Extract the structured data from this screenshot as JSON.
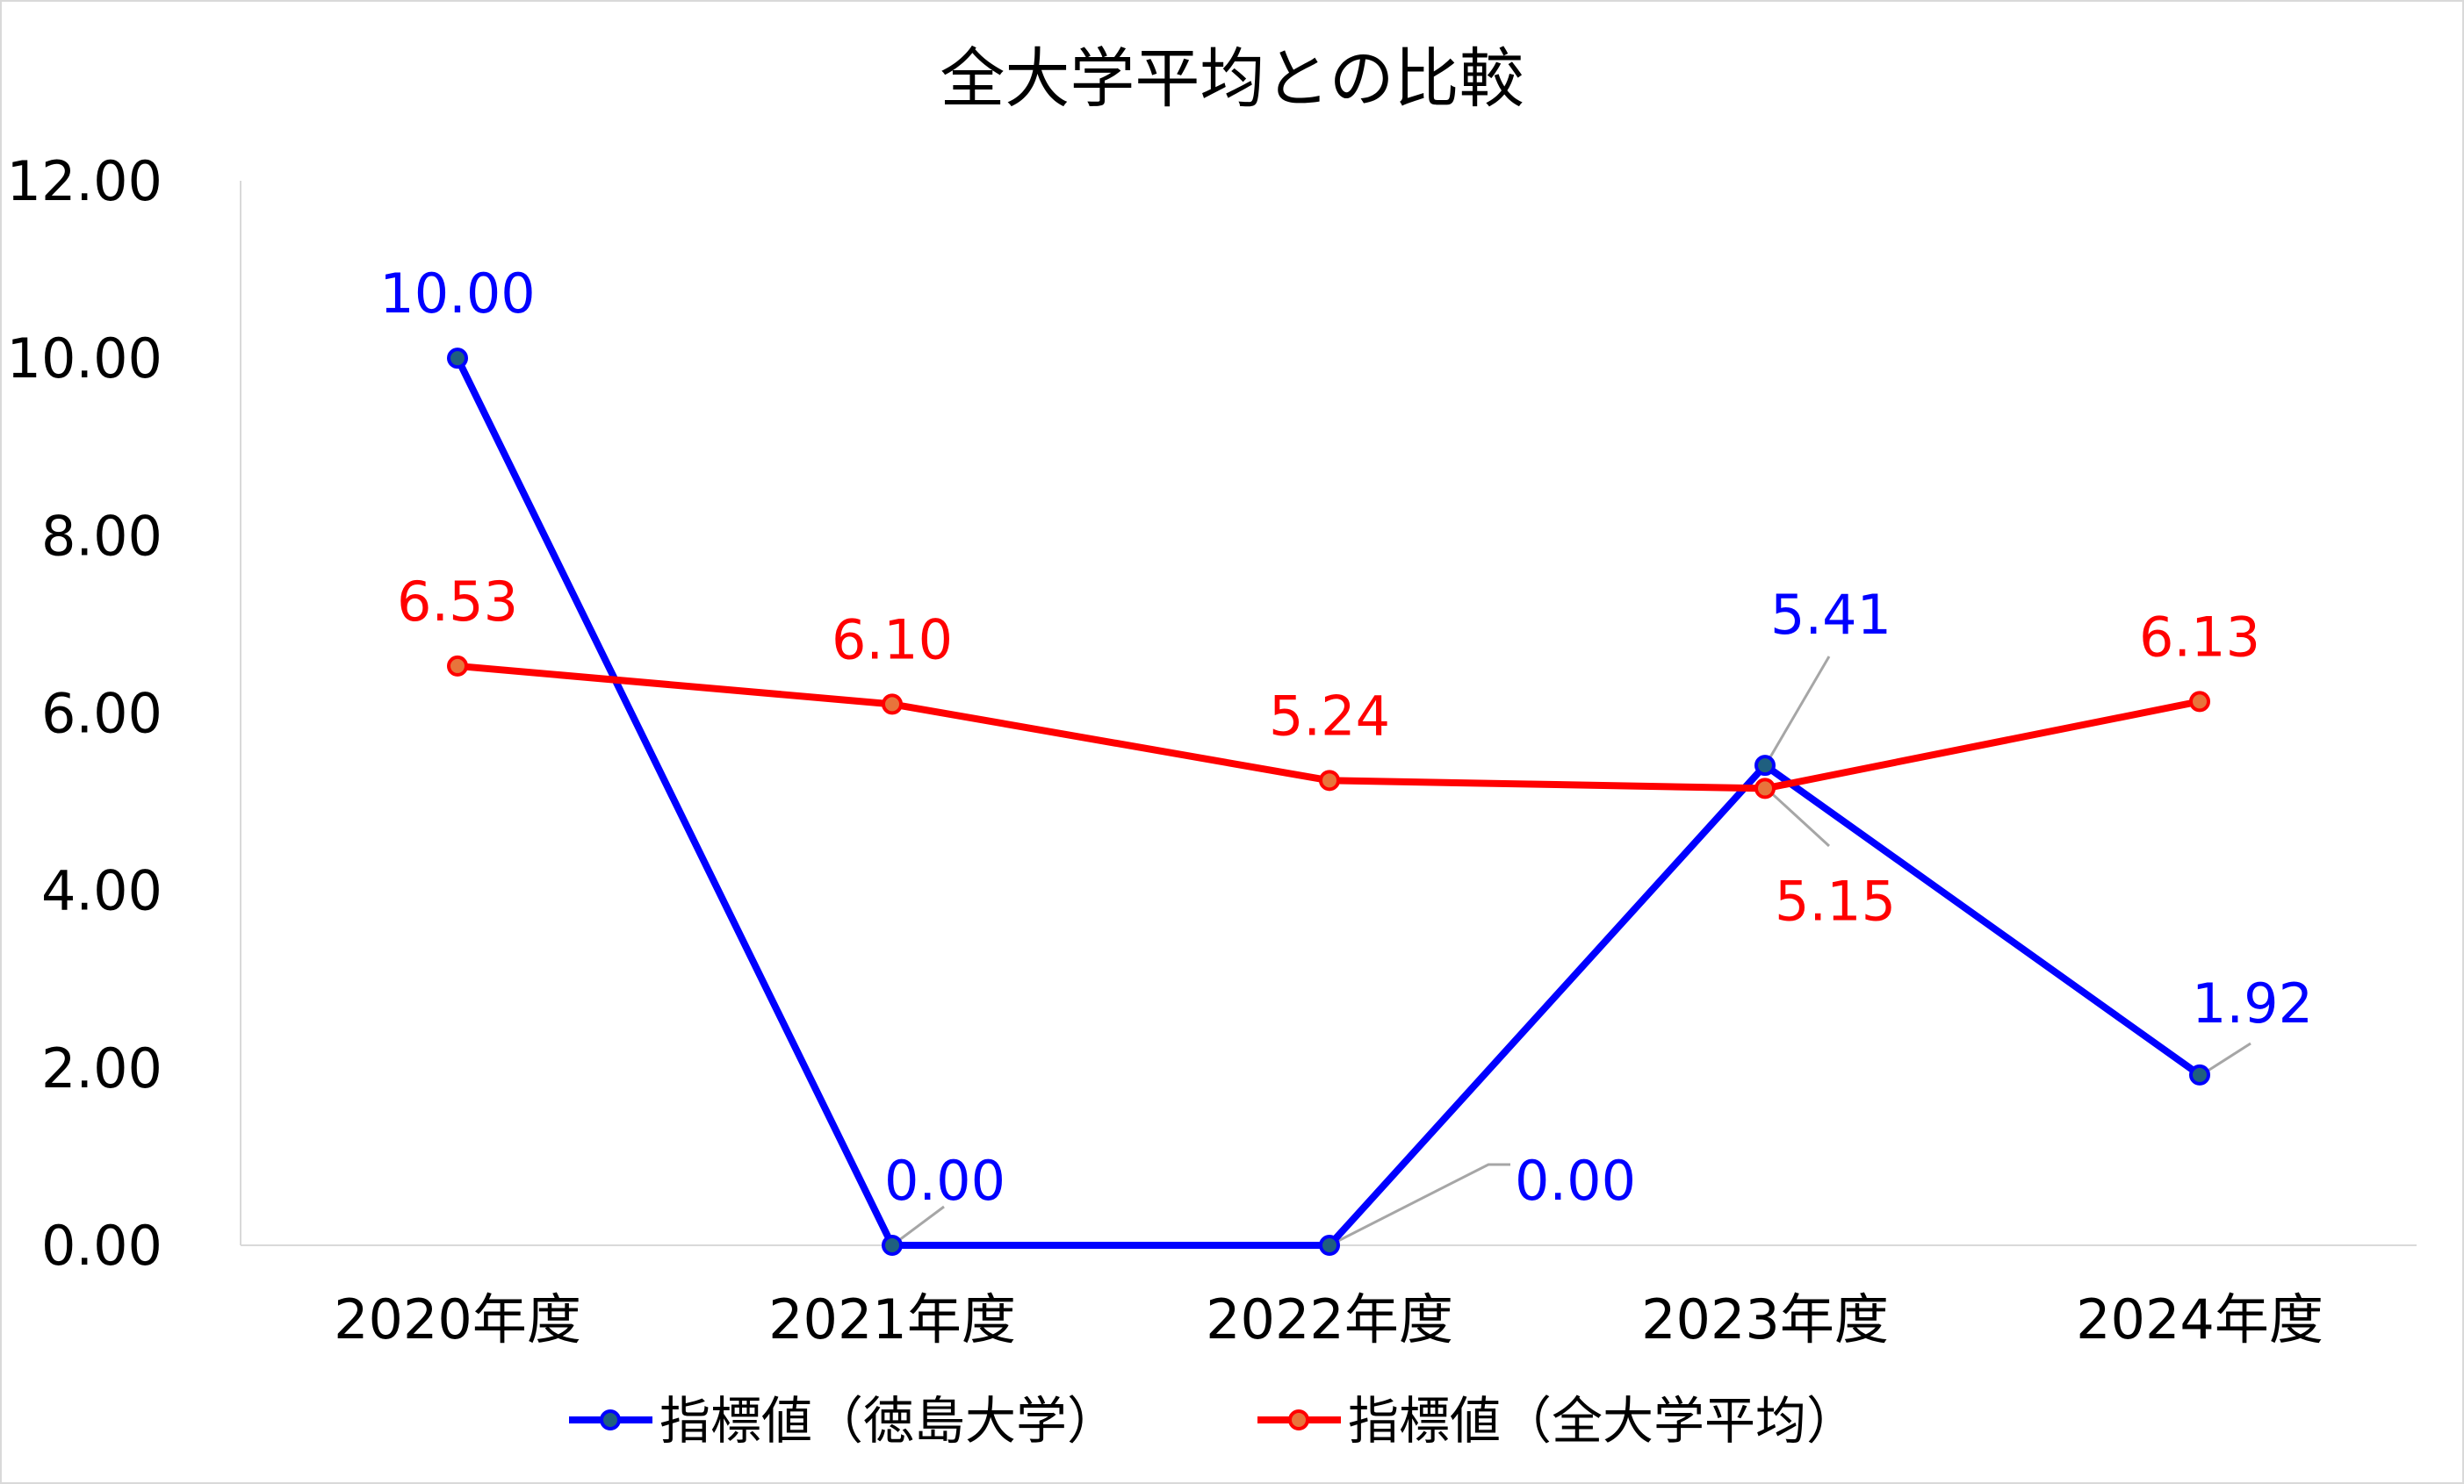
{
  "chart_data": {
    "type": "line",
    "title": "全大学平均との比較",
    "categories": [
      "2020年度",
      "2021年度",
      "2022年度",
      "2023年度",
      "2024年度"
    ],
    "ylim": [
      0,
      12
    ],
    "yticks": [
      "0.00",
      "2.00",
      "4.00",
      "6.00",
      "8.00",
      "10.00",
      "12.00"
    ],
    "grid": false,
    "legend": "bottom",
    "series": [
      {
        "name": "指標値（徳島大学）",
        "values": [
          10.0,
          0.0,
          0.0,
          5.41,
          1.92
        ],
        "labels": [
          "10.00",
          "0.00",
          "0.00",
          "5.41",
          "1.92"
        ],
        "color": "#0000FF",
        "marker_fill": "#1F5F7F"
      },
      {
        "name": "指標値（全大学平均）",
        "values": [
          6.53,
          6.1,
          5.24,
          5.15,
          6.13
        ],
        "labels": [
          "6.53",
          "6.10",
          "5.24",
          "5.15",
          "6.13"
        ],
        "color": "#FF0000",
        "marker_fill": "#E8743B"
      }
    ]
  }
}
